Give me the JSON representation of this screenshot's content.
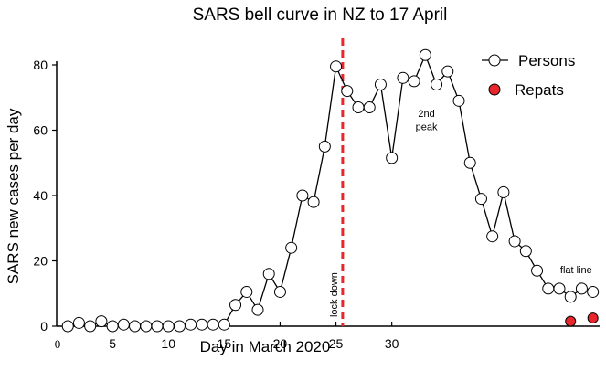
{
  "chart_data": {
    "type": "line",
    "title": "SARS bell curve in NZ to 17 April",
    "xlabel": "Day in March 2020",
    "ylabel": "SARS new cases per day",
    "xlim": [
      0,
      48.6
    ],
    "ylim": [
      0,
      80
    ],
    "x_ticks": [
      0,
      5,
      10,
      15,
      20,
      25,
      30
    ],
    "y_ticks": [
      0,
      20,
      40,
      60,
      80
    ],
    "grid": false,
    "legend_position": "top-right",
    "series": [
      {
        "name": "Persons",
        "marker": "open-circle",
        "color": "#000000",
        "x": [
          1,
          2,
          3,
          4,
          5,
          6,
          7,
          8,
          9,
          10,
          11,
          12,
          13,
          14,
          15,
          16,
          17,
          18,
          19,
          20,
          21,
          22,
          23,
          24,
          25,
          26,
          27,
          28,
          29,
          30,
          31,
          32,
          33,
          34,
          35,
          36,
          37,
          38,
          39,
          40,
          41,
          42,
          43,
          44,
          45,
          46,
          47,
          48
        ],
        "y": [
          0,
          1,
          0,
          1.5,
          0,
          0.5,
          0,
          0,
          0,
          0,
          0,
          0.5,
          0.5,
          0.5,
          0.5,
          6.5,
          10.5,
          5,
          16,
          10.5,
          24,
          40,
          38,
          55,
          79.5,
          72,
          67,
          67,
          74,
          51.5,
          76,
          75,
          83,
          74,
          78,
          69,
          50,
          39,
          27.5,
          41,
          26,
          23,
          17,
          11.5,
          11.5,
          9,
          11.5,
          10.5
        ]
      },
      {
        "name": "Repats",
        "marker": "filled-circle",
        "color": "#e8262b",
        "x": [
          46,
          48
        ],
        "y": [
          1.5,
          2.5
        ]
      }
    ],
    "annotations": [
      {
        "text": "lock down",
        "x": 25.6,
        "type": "vertical-dashed-line",
        "color": "#e8262b"
      },
      {
        "text": "2nd",
        "x": 33.1,
        "y": 64
      },
      {
        "text": "peak",
        "x": 33.1,
        "y": 60
      },
      {
        "text": "flat line",
        "x": 46.5,
        "y": 16.2
      }
    ]
  }
}
